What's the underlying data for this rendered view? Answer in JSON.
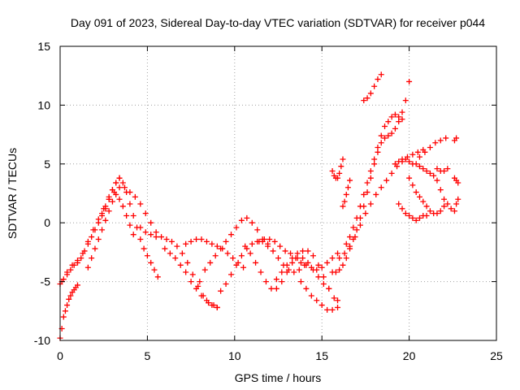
{
  "chart_data": {
    "type": "scatter",
    "title": "Day 091 of 2023, Sidereal Day-to-day VTEC variation (SDTVAR) for receiver p044",
    "xlabel": "GPS time / hours",
    "ylabel": "SDTVAR / TECUs",
    "xlim": [
      0,
      25
    ],
    "ylim": [
      -10,
      15
    ],
    "xticks": [
      0,
      5,
      10,
      15,
      20,
      25
    ],
    "yticks": [
      -10,
      -5,
      0,
      5,
      10,
      15
    ],
    "grid": true,
    "marker": "plus",
    "color": "#ff0000",
    "series": [
      {
        "x": [
          0.0,
          0.1,
          0.2,
          0.3,
          0.4,
          0.5,
          0.6,
          0.7,
          0.8,
          0.9,
          1.0
        ],
        "y": [
          -9.8,
          -9.0,
          -8.0,
          -7.5,
          -7.0,
          -6.5,
          -6.2,
          -5.9,
          -5.7,
          -5.5,
          -5.3
        ]
      },
      {
        "x": [
          0.0,
          0.2,
          0.4,
          0.6,
          0.8,
          1.0,
          1.2,
          1.4,
          1.6,
          1.8,
          2.0,
          2.2,
          2.4,
          2.6,
          2.8,
          3.0,
          3.2,
          3.4
        ],
        "y": [
          -5.2,
          -4.8,
          -4.4,
          -4.0,
          -3.6,
          -3.4,
          -3.0,
          -2.4,
          -1.8,
          -1.2,
          -0.6,
          0.0,
          0.6,
          1.2,
          2.0,
          2.8,
          3.4,
          3.8
        ]
      },
      {
        "x": [
          0.1,
          0.4,
          0.7,
          1.0,
          1.3,
          1.6,
          1.9,
          2.2,
          2.5,
          2.8,
          3.1,
          3.4,
          3.7,
          4.0,
          4.3,
          4.6,
          4.9,
          5.2,
          5.5
        ],
        "y": [
          -5.0,
          -4.2,
          -3.6,
          -3.2,
          -2.6,
          -1.6,
          -0.6,
          0.3,
          1.2,
          2.0,
          2.6,
          3.0,
          3.0,
          2.6,
          2.2,
          1.6,
          0.8,
          0.0,
          -0.8
        ]
      },
      {
        "x": [
          1.6,
          1.8,
          2.0,
          2.2,
          2.4,
          2.6,
          2.8,
          3.0,
          3.2,
          3.4,
          3.6,
          3.8,
          4.0,
          4.2
        ],
        "y": [
          -3.8,
          -3.0,
          -2.2,
          -1.4,
          -0.6,
          0.2,
          1.0,
          1.8,
          2.4,
          2.0,
          1.4,
          0.6,
          -0.2,
          -1.0
        ]
      },
      {
        "x": [
          2.4,
          2.6,
          2.8,
          3.0,
          3.2,
          3.4,
          3.6,
          3.8,
          4.0,
          4.2,
          4.4,
          4.6,
          4.8,
          5.0,
          5.2,
          5.4,
          5.6
        ],
        "y": [
          0.8,
          1.4,
          2.2,
          2.8,
          3.4,
          3.8,
          3.4,
          2.6,
          1.6,
          0.6,
          -0.4,
          -1.4,
          -2.2,
          -2.8,
          -3.4,
          -4.0,
          -4.6
        ]
      },
      {
        "x": [
          4.6,
          4.9,
          5.2,
          5.5,
          5.8,
          6.1,
          6.4,
          6.7,
          7.0,
          7.3,
          7.6,
          7.9,
          8.2,
          8.5,
          8.8,
          9.0
        ],
        "y": [
          -0.4,
          -0.8,
          -1.0,
          -1.2,
          -1.2,
          -1.4,
          -1.6,
          -2.0,
          -2.6,
          -3.4,
          -4.4,
          -5.4,
          -6.2,
          -6.8,
          -7.0,
          -7.2
        ]
      },
      {
        "x": [
          6.0,
          6.3,
          6.6,
          6.9,
          7.2,
          7.5,
          7.8,
          8.1,
          8.4,
          8.7,
          9.0
        ],
        "y": [
          -2.2,
          -2.6,
          -3.0,
          -3.6,
          -4.2,
          -5.0,
          -5.6,
          -6.2,
          -6.6,
          -7.0,
          -7.2
        ]
      },
      {
        "x": [
          7.2,
          7.5,
          7.8,
          8.1,
          8.4,
          8.7,
          9.0,
          9.3,
          9.6,
          9.9,
          10.2,
          10.5
        ],
        "y": [
          -1.8,
          -1.6,
          -1.4,
          -1.4,
          -1.6,
          -1.8,
          -2.0,
          -2.2,
          -2.6,
          -3.0,
          -3.4,
          -3.8
        ]
      },
      {
        "x": [
          8.0,
          8.3,
          8.6,
          8.9,
          9.2,
          9.5,
          9.8,
          10.1,
          10.4,
          10.7,
          11.0,
          11.3,
          11.6,
          11.9
        ],
        "y": [
          -5.0,
          -4.0,
          -3.4,
          -2.8,
          -2.2,
          -1.6,
          -1.0,
          -0.4,
          0.2,
          0.4,
          0.0,
          -0.6,
          -1.4,
          -2.0
        ]
      },
      {
        "x": [
          9.2,
          9.5,
          9.8,
          10.1,
          10.4,
          10.7,
          11.0,
          11.3,
          11.6,
          11.9,
          12.2,
          12.5,
          12.8,
          13.1,
          13.4,
          13.7,
          14.0
        ],
        "y": [
          -5.8,
          -5.2,
          -4.4,
          -3.6,
          -2.8,
          -2.2,
          -1.8,
          -1.6,
          -1.6,
          -1.8,
          -2.4,
          -3.0,
          -3.6,
          -4.0,
          -4.2,
          -4.0,
          -3.6
        ]
      },
      {
        "x": [
          10.6,
          10.9,
          11.2,
          11.5,
          11.8,
          12.1,
          12.4,
          12.7,
          13.0,
          13.3,
          13.6,
          13.9,
          14.2,
          14.5,
          14.8,
          15.1,
          15.4
        ],
        "y": [
          -2.0,
          -2.6,
          -3.4,
          -4.2,
          -5.0,
          -5.6,
          -5.6,
          -5.0,
          -4.2,
          -3.4,
          -3.0,
          -3.0,
          -3.4,
          -4.0,
          -4.6,
          -5.2,
          -5.6
        ]
      },
      {
        "x": [
          11.4,
          11.7,
          12.0,
          12.3,
          12.6,
          12.9,
          13.2,
          13.5,
          13.8,
          14.1,
          14.4,
          14.7,
          15.0,
          15.3,
          15.6,
          15.9
        ],
        "y": [
          -1.6,
          -1.4,
          -1.4,
          -1.6,
          -2.0,
          -2.4,
          -2.6,
          -3.0,
          -3.4,
          -3.6,
          -3.8,
          -4.0,
          -3.8,
          -3.4,
          -3.0,
          -2.6
        ]
      },
      {
        "x": [
          12.4,
          12.7,
          13.0,
          13.3,
          13.6,
          13.9,
          14.2,
          14.5,
          14.8,
          15.1,
          15.4,
          15.7,
          15.9
        ],
        "y": [
          -4.8,
          -4.2,
          -3.6,
          -3.0,
          -2.6,
          -2.4,
          -2.4,
          -2.8,
          -3.6,
          -4.6,
          -5.6,
          -6.4,
          -7.2
        ]
      },
      {
        "x": [
          13.8,
          14.1,
          14.4,
          14.7,
          15.0,
          15.3,
          15.6,
          15.9
        ],
        "y": [
          -5.0,
          -5.6,
          -6.2,
          -6.6,
          -7.0,
          -7.4,
          -7.4,
          -6.6
        ]
      },
      {
        "x": [
          15.6,
          15.8,
          16.0,
          16.2,
          16.4,
          16.6,
          16.8,
          17.0,
          17.2,
          17.4,
          17.6,
          17.8,
          18.0,
          18.2,
          18.4,
          18.6,
          18.8,
          19.0,
          19.2,
          19.4,
          19.6,
          19.8,
          20.0
        ],
        "y": [
          -4.2,
          -4.2,
          -4.0,
          -3.6,
          -3.0,
          -2.2,
          -1.4,
          -0.6,
          0.4,
          1.4,
          2.6,
          3.8,
          5.0,
          6.0,
          6.8,
          7.2,
          7.4,
          7.6,
          8.0,
          8.6,
          9.4,
          10.4,
          12.0
        ]
      },
      {
        "x": [
          16.0,
          16.3,
          16.6,
          16.9,
          17.2,
          17.5,
          17.8,
          18.1,
          18.4,
          18.7,
          19.0,
          19.3,
          19.6,
          19.9,
          20.2,
          20.5,
          20.8
        ],
        "y": [
          -3.0,
          -2.6,
          -2.0,
          -1.2,
          -0.2,
          0.8,
          1.6,
          2.4,
          3.0,
          3.6,
          4.2,
          4.8,
          5.2,
          5.6,
          5.8,
          6.0,
          6.2
        ]
      },
      {
        "x": [
          16.4,
          16.6,
          16.8,
          17.0,
          17.2,
          17.4,
          17.6,
          17.8,
          18.0,
          18.2,
          18.4,
          18.6,
          18.8,
          19.0,
          19.2,
          19.4,
          19.6
        ],
        "y": [
          -1.8,
          -1.2,
          -0.4,
          0.4,
          1.4,
          2.4,
          3.4,
          4.4,
          5.4,
          6.4,
          7.4,
          8.2,
          8.6,
          9.0,
          9.2,
          9.0,
          8.8
        ]
      },
      {
        "x": [
          15.6,
          15.7,
          15.8,
          15.9,
          16.0,
          16.1,
          16.2
        ],
        "y": [
          4.4,
          4.0,
          3.8,
          3.8,
          4.2,
          4.8,
          5.4
        ]
      },
      {
        "x": [
          16.2,
          16.3,
          16.4,
          16.5,
          16.6
        ],
        "y": [
          1.4,
          1.8,
          2.4,
          3.0,
          3.6
        ]
      },
      {
        "x": [
          17.4,
          17.6,
          17.8,
          18.0,
          18.2,
          18.4
        ],
        "y": [
          10.4,
          10.6,
          11.0,
          11.6,
          12.2,
          12.6
        ]
      },
      {
        "x": [
          19.2,
          19.4,
          19.6,
          19.8,
          20.0,
          20.2,
          20.4,
          20.6,
          20.8,
          21.0,
          21.2,
          21.4,
          21.6,
          21.8,
          22.0,
          22.2,
          22.4
        ],
        "y": [
          5.0,
          5.2,
          5.4,
          5.4,
          5.2,
          5.0,
          5.0,
          4.8,
          4.6,
          4.4,
          4.2,
          4.0,
          3.6,
          2.8,
          2.0,
          1.6,
          1.2
        ]
      },
      {
        "x": [
          20.0,
          20.2,
          20.4,
          20.6,
          20.8,
          21.0,
          21.2,
          21.4,
          21.6,
          21.8,
          22.0
        ],
        "y": [
          3.8,
          3.2,
          2.6,
          2.2,
          1.8,
          1.4,
          1.0,
          0.8,
          0.8,
          1.0,
          1.4
        ]
      },
      {
        "x": [
          19.4,
          19.6,
          19.8,
          20.0,
          20.2,
          20.4,
          20.6,
          20.8,
          21.0
        ],
        "y": [
          1.6,
          1.2,
          0.8,
          0.6,
          0.4,
          0.2,
          0.4,
          0.6,
          0.6
        ]
      },
      {
        "x": [
          20.6,
          20.9,
          21.2,
          21.5,
          21.8,
          22.1
        ],
        "y": [
          5.6,
          6.0,
          6.4,
          6.8,
          7.0,
          7.2
        ]
      },
      {
        "x": [
          21.6,
          21.8,
          22.0,
          22.2
        ],
        "y": [
          4.6,
          4.4,
          4.4,
          4.6
        ]
      },
      {
        "x": [
          22.6,
          22.7,
          22.8
        ],
        "y": [
          3.8,
          3.6,
          3.4
        ]
      },
      {
        "x": [
          22.6,
          22.7
        ],
        "y": [
          7.0,
          7.2
        ]
      },
      {
        "x": [
          22.6,
          22.7,
          22.8
        ],
        "y": [
          1.0,
          1.6,
          2.0
        ]
      }
    ]
  }
}
